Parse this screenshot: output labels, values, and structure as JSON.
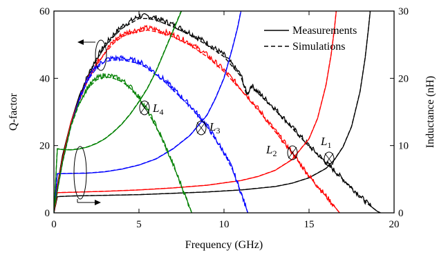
{
  "chart_data": {
    "type": "line",
    "xlabel": "Frequency (GHz)",
    "ylabel_left": "Q-factor",
    "ylabel_right": "Inductance (nH)",
    "xlim": [
      0,
      20
    ],
    "ylim_left": [
      0,
      60
    ],
    "ylim_right": [
      0,
      30
    ],
    "x_ticks": [
      0,
      5,
      10,
      15,
      20
    ],
    "y_ticks_left": [
      0,
      20,
      40,
      60
    ],
    "y_ticks_right": [
      0,
      10,
      20,
      30
    ],
    "grid": false,
    "legend_position": "top-right",
    "legend": [
      {
        "label": "Measurements",
        "style": "solid"
      },
      {
        "label": "Simulations",
        "style": "dashed"
      }
    ],
    "series": [
      {
        "inductor": "L1",
        "quantity": "Q",
        "axis": "left",
        "color": "#000000",
        "x": [
          0,
          0.5,
          1,
          1.5,
          2,
          2.5,
          3,
          3.5,
          4,
          4.5,
          5,
          5.5,
          6,
          7,
          8,
          9,
          10,
          11,
          11.3,
          11.4,
          11.6,
          12,
          13,
          14,
          15,
          16,
          17,
          18,
          18.5,
          19,
          19.2
        ],
        "y": [
          2,
          17,
          27,
          35,
          41,
          46,
          50,
          53,
          55.5,
          57,
          58.5,
          58.5,
          58,
          56,
          53.5,
          50.5,
          47,
          41,
          36,
          35.5,
          38,
          36,
          31,
          25.5,
          20,
          15,
          10,
          5,
          2.5,
          0.5,
          0
        ]
      },
      {
        "inductor": "L1",
        "quantity": "L",
        "axis": "right",
        "color": "#000000",
        "x": [
          0,
          0.2,
          1,
          3,
          5,
          7,
          9,
          11,
          13,
          14,
          15,
          16,
          16.5,
          17,
          17.5,
          18,
          18.3,
          18.5,
          18.6
        ],
        "y": [
          0,
          2.4,
          2.5,
          2.6,
          2.7,
          2.9,
          3.1,
          3.4,
          3.9,
          4.4,
          5.2,
          6.6,
          7.9,
          9.8,
          12.8,
          18,
          23,
          27.5,
          30
        ]
      },
      {
        "inductor": "L2",
        "quantity": "Q",
        "axis": "left",
        "color": "#ff0000",
        "x": [
          0,
          0.5,
          1,
          1.5,
          2,
          2.5,
          3,
          3.5,
          4,
          4.5,
          5,
          5.5,
          6,
          7,
          8,
          9,
          10,
          11,
          12,
          13,
          14,
          15,
          16,
          16.8
        ],
        "y": [
          2,
          16,
          27,
          34,
          40,
          44.5,
          48,
          51,
          53,
          54,
          54.5,
          55,
          54.5,
          53,
          50.5,
          47,
          42.5,
          37,
          31,
          24.5,
          18,
          11,
          5,
          0
        ]
      },
      {
        "inductor": "L2",
        "quantity": "L",
        "axis": "right",
        "color": "#ff0000",
        "x": [
          0,
          0.2,
          1,
          3,
          5,
          7,
          9,
          11,
          12,
          13,
          14,
          15,
          15.5,
          16,
          16.3,
          16.5,
          16.6
        ],
        "y": [
          0,
          3,
          3.05,
          3.2,
          3.4,
          3.7,
          4.1,
          4.8,
          5.4,
          6.3,
          7.9,
          11,
          14,
          19,
          23.5,
          27.5,
          30
        ]
      },
      {
        "inductor": "L3",
        "quantity": "Q",
        "axis": "left",
        "color": "#0000ff",
        "x": [
          0,
          0.5,
          1,
          1.5,
          2,
          2.5,
          3,
          3.5,
          4,
          4.5,
          5,
          5.5,
          6,
          6.5,
          7,
          7.5,
          8,
          9,
          10,
          10.5,
          11,
          11.3,
          11.4
        ],
        "y": [
          1,
          15,
          26,
          34,
          40,
          43.5,
          45.5,
          46,
          46,
          45.5,
          45,
          43.5,
          41.5,
          39.5,
          37,
          34.5,
          32,
          26,
          18,
          13,
          6,
          1.5,
          0
        ]
      },
      {
        "inductor": "L3",
        "quantity": "L",
        "axis": "right",
        "color": "#0000ff",
        "x": [
          0,
          0.2,
          1,
          2,
          3,
          4,
          5,
          6,
          7,
          8,
          9,
          9.5,
          10,
          10.5,
          10.8,
          11
        ],
        "y": [
          0,
          5.8,
          5.85,
          5.9,
          6.1,
          6.5,
          7.1,
          8,
          9.5,
          11.5,
          14.5,
          17,
          20,
          24.5,
          27.5,
          30
        ]
      },
      {
        "inductor": "L4",
        "quantity": "Q",
        "axis": "left",
        "color": "#008000",
        "x": [
          0,
          0.5,
          1,
          1.5,
          2,
          2.5,
          3,
          3.5,
          4,
          4.5,
          5,
          5.5,
          6,
          6.5,
          7,
          7.5,
          8,
          8.1
        ],
        "y": [
          1,
          15,
          26,
          33,
          37.5,
          40,
          41,
          40.5,
          39.5,
          37.5,
          34.5,
          30.5,
          26,
          20.5,
          14.5,
          8,
          1.5,
          0
        ]
      },
      {
        "inductor": "L4",
        "quantity": "L",
        "axis": "right",
        "color": "#008000",
        "x": [
          0,
          0.2,
          0.5,
          1,
          1.5,
          2,
          2.5,
          3,
          3.5,
          4,
          4.5,
          5,
          5.5,
          6,
          6.5,
          7,
          7.5
        ],
        "y": [
          0,
          9.5,
          9.4,
          9.35,
          9.5,
          9.8,
          10.3,
          11,
          12,
          13.2,
          14.7,
          16.5,
          18.5,
          21,
          24,
          27,
          30
        ]
      }
    ],
    "annotations": [
      {
        "name": "L1",
        "base": "L",
        "sub": "1"
      },
      {
        "name": "L2",
        "base": "L",
        "sub": "2"
      },
      {
        "name": "L3",
        "base": "L",
        "sub": "3"
      },
      {
        "name": "L4",
        "base": "L",
        "sub": "4"
      }
    ]
  }
}
